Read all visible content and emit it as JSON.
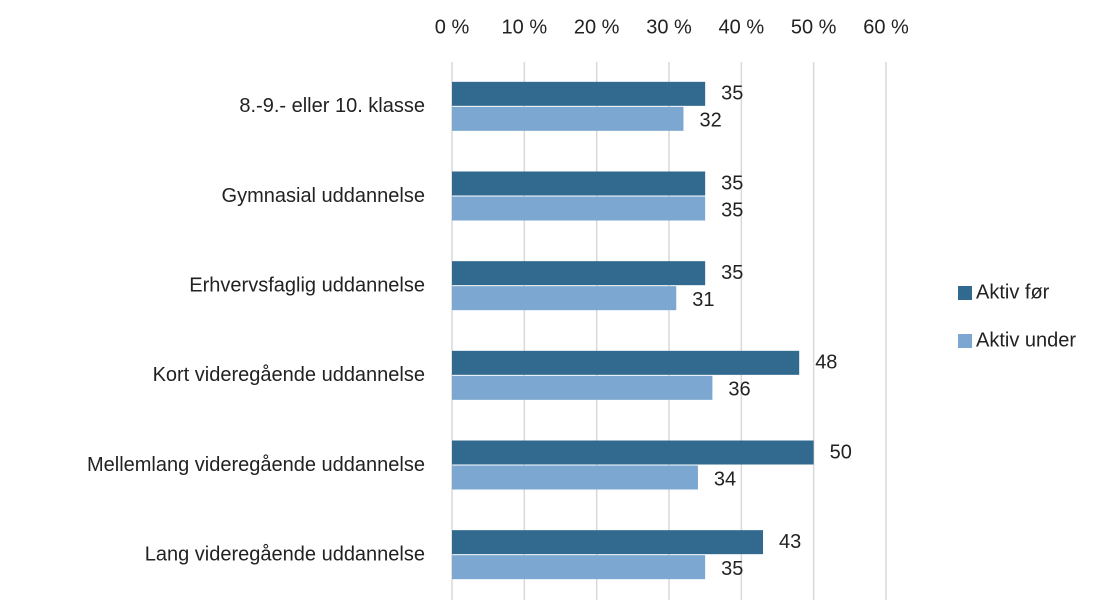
{
  "chart_data": {
    "type": "hbar",
    "categories": [
      "8.-9.- eller 10. klasse",
      "Gymnasial uddannelse",
      "Erhvervsfaglig uddannelse",
      "Kort videregående uddannelse",
      "Mellemlang videregående uddannelse",
      "Lang videregående uddannelse"
    ],
    "series": [
      {
        "name": "Aktiv før",
        "color": "#31698f",
        "values": [
          35,
          35,
          35,
          48,
          50,
          43
        ]
      },
      {
        "name": "Aktiv under",
        "color": "#7ba7d0",
        "values": [
          32,
          35,
          31,
          36,
          34,
          35
        ]
      }
    ],
    "xlim": [
      0,
      60
    ],
    "xticks": [
      {
        "value": 0,
        "label": "0 %"
      },
      {
        "value": 10,
        "label": "10 %"
      },
      {
        "value": 20,
        "label": "20 %"
      },
      {
        "value": 30,
        "label": "30 %"
      },
      {
        "value": 40,
        "label": "40 %"
      },
      {
        "value": 50,
        "label": "50 %"
      },
      {
        "value": 60,
        "label": "60 %"
      }
    ],
    "grid": true,
    "legend": "right"
  }
}
